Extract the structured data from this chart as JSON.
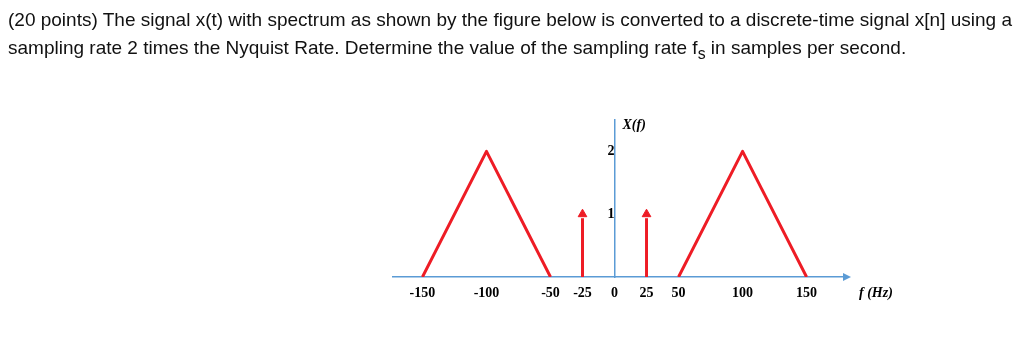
{
  "chart_data": {
    "type": "line",
    "title": "(20 points) The signal x(t) with spectrum as shown by the figure below is converted to a discrete-time signal x[n] using a sampling rate 2 times the Nyquist Rate. Determine the value of the sampling rate f$_{s}$ in samples per second.",
    "xlabel": "f (Hz)",
    "ylabel": "X(f)",
    "series": [
      {
        "color": "#ee1c25",
        "x": [
          -150,
          -100,
          -50,
          0,
          50,
          100,
          150
        ],
        "values": [
          0,
          2,
          0,
          null,
          0,
          2,
          0
        ]
      },
      {
        "type": "lollipop",
        "color": "#ee1c25",
        "marker": "triangle",
        "x": [
          -25,
          25
        ],
        "values": [
          1,
          1
        ]
      }
    ],
    "xlim": [
      -173,
      180
    ],
    "xticks": [
      -150,
      -100,
      -50,
      -25,
      0,
      25,
      50,
      100,
      150
    ],
    "ylim": [
      0,
      2.5
    ],
    "yticks": [
      1,
      2
    ],
    "grid": false,
    "legend": false
  }
}
